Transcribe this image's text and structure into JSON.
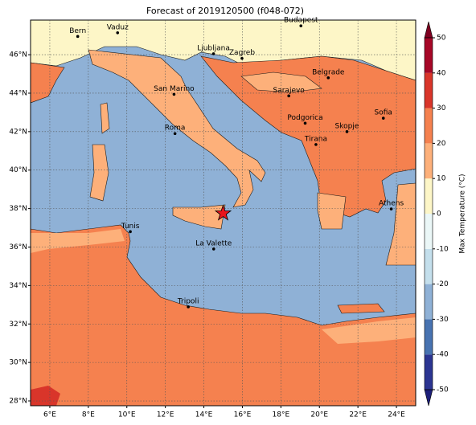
{
  "chart_data": {
    "type": "map",
    "title": "Forecast of 2019120500 (f048-072)",
    "xlim": [
      5,
      25
    ],
    "ylim": [
      27.75,
      47.8
    ],
    "xticks": [
      {
        "value": 6,
        "label": "6°E"
      },
      {
        "value": 8,
        "label": "8°E"
      },
      {
        "value": 10,
        "label": "10°E"
      },
      {
        "value": 12,
        "label": "12°E"
      },
      {
        "value": 14,
        "label": "14°E"
      },
      {
        "value": 16,
        "label": "16°E"
      },
      {
        "value": 18,
        "label": "18°E"
      },
      {
        "value": 20,
        "label": "20°E"
      },
      {
        "value": 22,
        "label": "22°E"
      },
      {
        "value": 24,
        "label": "24°E"
      }
    ],
    "yticks": [
      {
        "value": 28,
        "label": "28°N"
      },
      {
        "value": 30,
        "label": "30°N"
      },
      {
        "value": 32,
        "label": "32°N"
      },
      {
        "value": 34,
        "label": "34°N"
      },
      {
        "value": 36,
        "label": "36°N"
      },
      {
        "value": 38,
        "label": "38°N"
      },
      {
        "value": 40,
        "label": "40°N"
      },
      {
        "value": 42,
        "label": "42°N"
      },
      {
        "value": 44,
        "label": "44°N"
      },
      {
        "value": 46,
        "label": "46°N"
      }
    ],
    "grid": true,
    "cities": [
      {
        "name": "Bern",
        "lon": 7.45,
        "lat": 46.95
      },
      {
        "name": "Vaduz",
        "lon": 9.52,
        "lat": 47.14
      },
      {
        "name": "Ljubljana",
        "lon": 14.5,
        "lat": 46.05
      },
      {
        "name": "Zagreb",
        "lon": 15.98,
        "lat": 45.81
      },
      {
        "name": "Budapest",
        "lon": 19.04,
        "lat": 47.5
      },
      {
        "name": "Belgrade",
        "lon": 20.46,
        "lat": 44.8
      },
      {
        "name": "Sarajevo",
        "lon": 18.41,
        "lat": 43.86
      },
      {
        "name": "San Marino",
        "lon": 12.45,
        "lat": 43.94
      },
      {
        "name": "Roma",
        "lon": 12.5,
        "lat": 41.9
      },
      {
        "name": "Podgorica",
        "lon": 19.26,
        "lat": 42.44
      },
      {
        "name": "Sofia",
        "lon": 23.32,
        "lat": 42.7
      },
      {
        "name": "Skopje",
        "lon": 21.43,
        "lat": 42.0
      },
      {
        "name": "Tirana",
        "lon": 19.82,
        "lat": 41.33
      },
      {
        "name": "Athens",
        "lon": 23.73,
        "lat": 37.98
      },
      {
        "name": "Tunis",
        "lon": 10.18,
        "lat": 36.8
      },
      {
        "name": "La Valette",
        "lon": 14.51,
        "lat": 35.9
      },
      {
        "name": "Tripoli",
        "lon": 13.19,
        "lat": 32.89
      }
    ],
    "marker": {
      "lon": 15.0,
      "lat": 37.75,
      "color": "#e8141c"
    },
    "colorbar": {
      "label": "Max Temperature (°C)",
      "lim": [
        -50,
        50
      ],
      "ticks": [
        -50,
        -40,
        -30,
        -20,
        -10,
        0,
        10,
        20,
        30,
        40,
        50
      ],
      "colors": [
        "#2c3592",
        "#4873b1",
        "#8fb1d6",
        "#c4dfec",
        "#ebf7f7",
        "#fdf6c7",
        "#fdb07a",
        "#f5814f",
        "#d9352a",
        "#a70727"
      ],
      "under_color": "#1d1f7a",
      "over_color": "#7f0020"
    }
  }
}
